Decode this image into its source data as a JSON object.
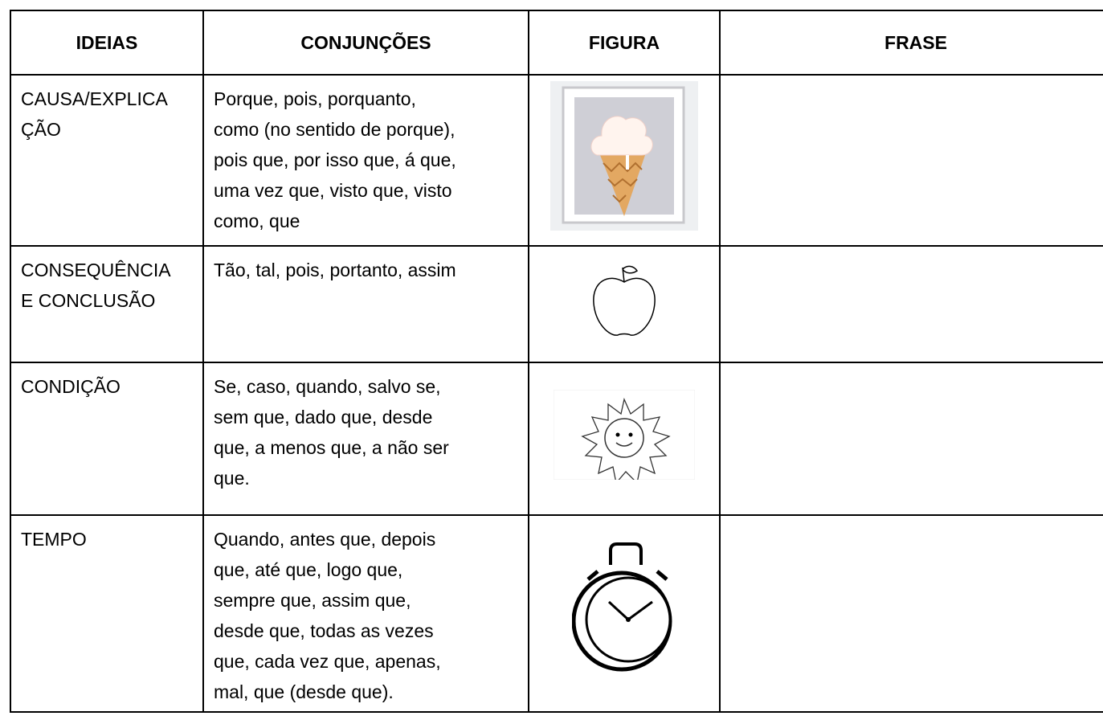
{
  "table": {
    "headers": [
      "IDEIAS",
      "CONJUNÇÕES",
      "FIGURA",
      "FRASE"
    ],
    "rows": [
      {
        "ideia": [
          "CAUSA/EXPLICA",
          "ÇÃO"
        ],
        "conjuncoes": [
          "Porque, pois, porquanto,",
          "como (no sentido de porque),",
          "pois que, por isso que, á que,",
          "uma vez que, visto que, visto",
          "como, que"
        ]
      },
      {
        "ideia": [
          "CONSEQUÊNCIA",
          "E CONCLUSÃO"
        ],
        "conjuncoes": [
          "Tão, tal, pois, portanto, assim"
        ]
      },
      {
        "ideia": [
          "CONDIÇÃO"
        ],
        "conjuncoes": [
          "Se, caso, quando, salvo se,",
          "sem que, dado que, desde",
          "que, a menos que, a não ser",
          "que."
        ]
      },
      {
        "ideia": [
          "TEMPO"
        ],
        "conjuncoes": [
          "Quando, antes que, depois",
          "que, até que, logo que,",
          "sempre que, assim que,",
          "desde que, todas as vezes",
          "que, cada vez que, apenas,",
          "mal, que (desde que)."
        ]
      }
    ]
  }
}
